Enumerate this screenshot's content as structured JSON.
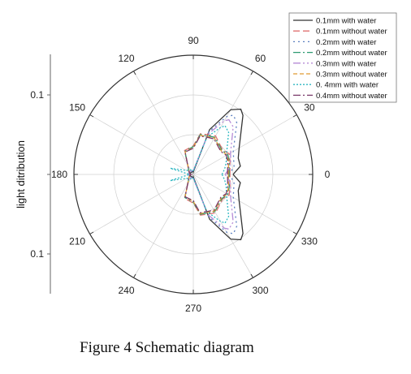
{
  "chart_data": {
    "type": "polar-line",
    "title": "",
    "ylabel": "light ditribution",
    "r_max": 0.1,
    "radial_tick_labels": [
      "0.1",
      "0.1"
    ],
    "angle_ticks": [
      0,
      30,
      60,
      90,
      120,
      150,
      180,
      210,
      240,
      270,
      300,
      330
    ],
    "angle_tick_labels": [
      "0",
      "30",
      "60",
      "90",
      "120",
      "150",
      "180",
      "210",
      "240",
      "270",
      "300",
      "330"
    ],
    "grid": true,
    "legend_position": "top-right",
    "series": [
      {
        "name": "0.1mm with water",
        "color": "#333333",
        "dash": "solid",
        "points": [
          [
            0,
            0.05
          ],
          [
            10,
            0.06
          ],
          [
            20,
            0.06
          ],
          [
            30,
            0.0665
          ],
          [
            50,
            0.097
          ],
          [
            54,
            0.1015
          ],
          [
            60,
            0.094
          ],
          [
            70,
            0.06
          ],
          [
            85,
            0.004
          ],
          [
            90,
            0.003
          ],
          [
            95,
            0.004
          ],
          [
            150,
            0.004
          ],
          [
            175,
            0.004
          ],
          [
            180,
            0.003
          ],
          [
            185,
            0.004
          ],
          [
            210,
            0.004
          ],
          [
            265,
            0.004
          ],
          [
            270,
            0.003
          ],
          [
            275,
            0.004
          ],
          [
            290,
            0.06
          ],
          [
            300,
            0.094
          ],
          [
            306,
            0.1015
          ],
          [
            310,
            0.097
          ],
          [
            330,
            0.0665
          ],
          [
            340,
            0.06
          ],
          [
            350,
            0.06
          ],
          [
            360,
            0.05
          ]
        ]
      },
      {
        "name": "0.1mm without water",
        "color": "#e07070",
        "dash": "8,4",
        "points": [
          [
            0,
            0.046
          ],
          [
            20,
            0.049
          ],
          [
            30,
            0.052
          ],
          [
            40,
            0.048
          ],
          [
            60,
            0.056
          ],
          [
            80,
            0.052
          ],
          [
            90,
            0.036
          ],
          [
            110,
            0.032
          ],
          [
            150,
            0.006
          ],
          [
            175,
            0.004
          ],
          [
            180,
            0.003
          ],
          [
            185,
            0.004
          ],
          [
            210,
            0.006
          ],
          [
            250,
            0.032
          ],
          [
            270,
            0.036
          ],
          [
            280,
            0.052
          ],
          [
            300,
            0.056
          ],
          [
            320,
            0.048
          ],
          [
            330,
            0.052
          ],
          [
            340,
            0.049
          ],
          [
            360,
            0.046
          ]
        ]
      },
      {
        "name": "0.2mm with water",
        "color": "#5a7fc0",
        "dash": "2,4",
        "points": [
          [
            0,
            0.044
          ],
          [
            10,
            0.052
          ],
          [
            20,
            0.054
          ],
          [
            30,
            0.058
          ],
          [
            50,
            0.085
          ],
          [
            56,
            0.09
          ],
          [
            60,
            0.084
          ],
          [
            70,
            0.057
          ],
          [
            85,
            0.005
          ],
          [
            90,
            0.004
          ],
          [
            95,
            0.005
          ],
          [
            150,
            0.005
          ],
          [
            175,
            0.005
          ],
          [
            180,
            0.004
          ],
          [
            185,
            0.005
          ],
          [
            210,
            0.005
          ],
          [
            265,
            0.005
          ],
          [
            270,
            0.004
          ],
          [
            275,
            0.005
          ],
          [
            290,
            0.057
          ],
          [
            300,
            0.084
          ],
          [
            304,
            0.09
          ],
          [
            310,
            0.085
          ],
          [
            330,
            0.058
          ],
          [
            340,
            0.054
          ],
          [
            350,
            0.052
          ],
          [
            360,
            0.044
          ]
        ]
      },
      {
        "name": "0.2mm without water",
        "color": "#2e9a72",
        "dash": "9,3,2,3",
        "points": [
          [
            0,
            0.045
          ],
          [
            20,
            0.048
          ],
          [
            30,
            0.05
          ],
          [
            40,
            0.047
          ],
          [
            60,
            0.054
          ],
          [
            80,
            0.051
          ],
          [
            90,
            0.035
          ],
          [
            110,
            0.031
          ],
          [
            150,
            0.006
          ],
          [
            175,
            0.004
          ],
          [
            180,
            0.003
          ],
          [
            185,
            0.004
          ],
          [
            210,
            0.006
          ],
          [
            250,
            0.031
          ],
          [
            270,
            0.035
          ],
          [
            280,
            0.051
          ],
          [
            300,
            0.054
          ],
          [
            320,
            0.047
          ],
          [
            330,
            0.05
          ],
          [
            340,
            0.048
          ],
          [
            360,
            0.045
          ]
        ]
      },
      {
        "name": "0.3mm with water",
        "color": "#b58bd6",
        "dash": "9,3,2,3,2,3",
        "points": [
          [
            0,
            0.04
          ],
          [
            10,
            0.046
          ],
          [
            20,
            0.05
          ],
          [
            30,
            0.054
          ],
          [
            50,
            0.078
          ],
          [
            57,
            0.082
          ],
          [
            60,
            0.078
          ],
          [
            70,
            0.054
          ],
          [
            85,
            0.006
          ],
          [
            90,
            0.005
          ],
          [
            95,
            0.006
          ],
          [
            150,
            0.006
          ],
          [
            175,
            0.006
          ],
          [
            180,
            0.005
          ],
          [
            185,
            0.006
          ],
          [
            210,
            0.006
          ],
          [
            265,
            0.006
          ],
          [
            270,
            0.005
          ],
          [
            275,
            0.006
          ],
          [
            290,
            0.054
          ],
          [
            300,
            0.078
          ],
          [
            303,
            0.082
          ],
          [
            310,
            0.078
          ],
          [
            330,
            0.054
          ],
          [
            340,
            0.05
          ],
          [
            350,
            0.046
          ],
          [
            360,
            0.04
          ]
        ]
      },
      {
        "name": "0.3mm without water",
        "color": "#e09a30",
        "dash": "5,3",
        "points": [
          [
            0,
            0.044
          ],
          [
            20,
            0.047
          ],
          [
            30,
            0.049
          ],
          [
            40,
            0.046
          ],
          [
            60,
            0.053
          ],
          [
            80,
            0.05
          ],
          [
            90,
            0.034
          ],
          [
            110,
            0.03
          ],
          [
            150,
            0.006
          ],
          [
            175,
            0.004
          ],
          [
            180,
            0.003
          ],
          [
            185,
            0.004
          ],
          [
            210,
            0.006
          ],
          [
            250,
            0.03
          ],
          [
            270,
            0.034
          ],
          [
            280,
            0.05
          ],
          [
            300,
            0.053
          ],
          [
            320,
            0.046
          ],
          [
            330,
            0.049
          ],
          [
            340,
            0.047
          ],
          [
            360,
            0.044
          ]
        ]
      },
      {
        "name": "0. 4mm with water",
        "color": "#2fb7c2",
        "dash": "2,2",
        "points": [
          [
            0,
            0.036
          ],
          [
            10,
            0.04
          ],
          [
            20,
            0.044
          ],
          [
            30,
            0.048
          ],
          [
            50,
            0.069
          ],
          [
            57,
            0.073
          ],
          [
            60,
            0.068
          ],
          [
            70,
            0.05
          ],
          [
            85,
            0.006
          ],
          [
            90,
            0.005
          ],
          [
            95,
            0.006
          ],
          [
            150,
            0.01
          ],
          [
            165,
            0.03
          ],
          [
            175,
            0.006
          ],
          [
            180,
            0.005
          ],
          [
            185,
            0.006
          ],
          [
            195,
            0.03
          ],
          [
            210,
            0.01
          ],
          [
            265,
            0.006
          ],
          [
            270,
            0.005
          ],
          [
            275,
            0.006
          ],
          [
            290,
            0.05
          ],
          [
            300,
            0.068
          ],
          [
            303,
            0.073
          ],
          [
            310,
            0.069
          ],
          [
            330,
            0.048
          ],
          [
            340,
            0.044
          ],
          [
            350,
            0.04
          ],
          [
            360,
            0.036
          ]
        ]
      },
      {
        "name": "0.4mm without water",
        "color": "#7a3a6a",
        "dash": "9,3,2,3",
        "points": [
          [
            0,
            0.043
          ],
          [
            20,
            0.046
          ],
          [
            30,
            0.048
          ],
          [
            40,
            0.045
          ],
          [
            60,
            0.052
          ],
          [
            80,
            0.049
          ],
          [
            90,
            0.033
          ],
          [
            110,
            0.03
          ],
          [
            150,
            0.006
          ],
          [
            175,
            0.004
          ],
          [
            180,
            0.003
          ],
          [
            185,
            0.004
          ],
          [
            210,
            0.006
          ],
          [
            250,
            0.03
          ],
          [
            270,
            0.033
          ],
          [
            280,
            0.049
          ],
          [
            300,
            0.052
          ],
          [
            320,
            0.045
          ],
          [
            330,
            0.048
          ],
          [
            340,
            0.046
          ],
          [
            360,
            0.043
          ]
        ]
      }
    ]
  },
  "caption": "Figure 4 Schematic diagram"
}
